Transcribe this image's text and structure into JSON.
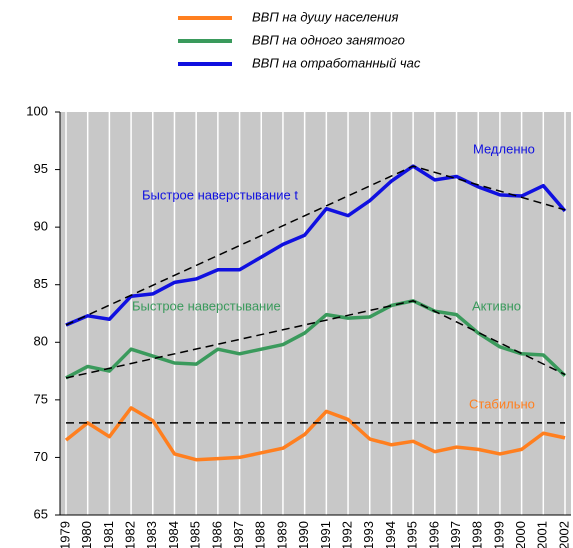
{
  "chart_data": {
    "type": "line",
    "categories": [
      "1979",
      "1980",
      "1981",
      "1982",
      "1983",
      "1984",
      "1985",
      "1986",
      "1987",
      "1988",
      "1989",
      "1990",
      "1991",
      "1992",
      "1993",
      "1994",
      "1995",
      "1996",
      "1997",
      "1998",
      "1999",
      "2000",
      "2001",
      "2002"
    ],
    "series": [
      {
        "name": "ВВП на душу населения",
        "color": "#ff7f1f",
        "values": [
          71.5,
          73.0,
          71.8,
          74.3,
          73.2,
          70.3,
          69.8,
          69.9,
          70.0,
          70.4,
          70.8,
          72.0,
          74.0,
          73.3,
          71.6,
          71.1,
          71.4,
          70.5,
          70.9,
          70.7,
          70.3,
          70.7,
          72.1,
          71.7
        ]
      },
      {
        "name": "ВВП на одного занятого",
        "color": "#3a9a5c",
        "values": [
          76.9,
          77.9,
          77.5,
          79.4,
          78.8,
          78.2,
          78.1,
          79.4,
          79.0,
          79.4,
          79.8,
          80.8,
          82.4,
          82.1,
          82.2,
          83.2,
          83.6,
          82.7,
          82.4,
          80.8,
          79.6,
          79.0,
          78.9,
          77.1
        ]
      },
      {
        "name": "ВВП на отработанный час",
        "color": "#1010e0",
        "values": [
          81.5,
          82.3,
          82.0,
          84.0,
          84.2,
          85.2,
          85.5,
          86.3,
          86.3,
          87.4,
          88.5,
          89.3,
          91.6,
          91.0,
          92.3,
          94.0,
          95.3,
          94.1,
          94.4,
          93.5,
          92.8,
          92.7,
          93.6,
          91.4
        ]
      }
    ],
    "trend_lines": [
      {
        "x": [
          "1979",
          "1995",
          "2002"
        ],
        "values": [
          81.5,
          95.3,
          91.5
        ]
      },
      {
        "x": [
          "1979",
          "1995",
          "2002"
        ],
        "values": [
          76.9,
          83.6,
          77.2
        ]
      },
      {
        "x": [
          "1979",
          "2002"
        ],
        "values": [
          73,
          73
        ]
      }
    ],
    "annotations": [
      "Медленно",
      "Быстрое наверстывание t",
      "Быстрое наверстывание",
      "Активно",
      "Стабильно"
    ],
    "ylim": [
      65,
      100
    ],
    "yticks": [
      65,
      70,
      75,
      80,
      85,
      90,
      95,
      100
    ],
    "grid": true
  }
}
